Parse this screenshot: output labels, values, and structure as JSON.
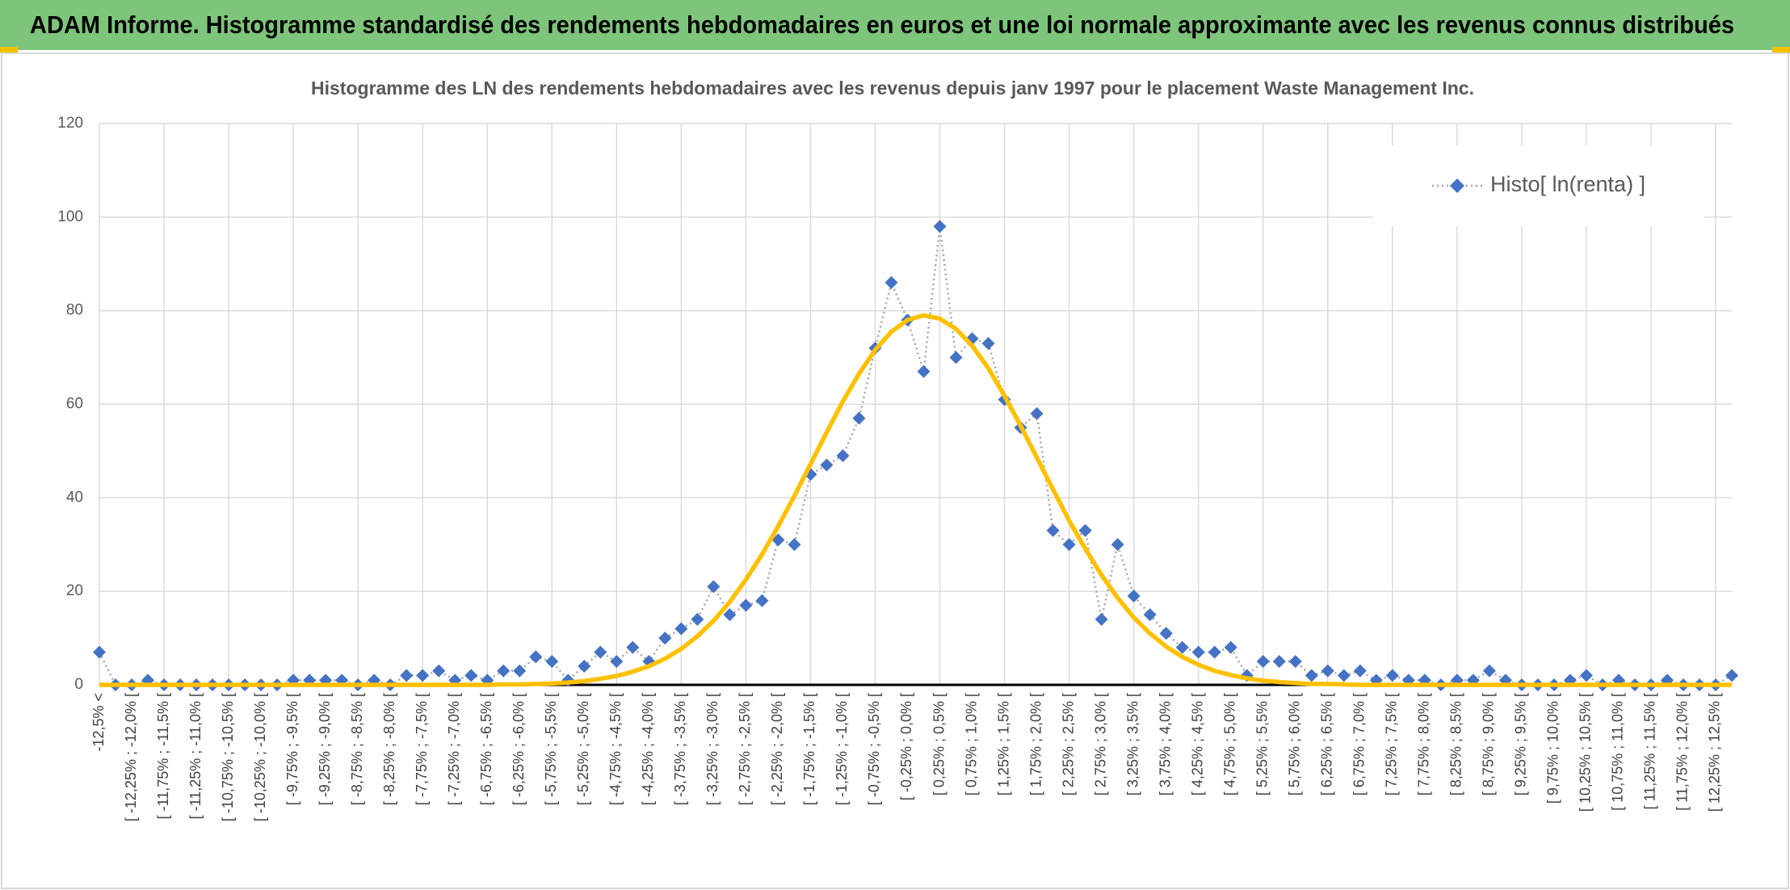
{
  "header": {
    "title": "ADAM Informe. Histogramme standardisé des rendements hebdomadaires en euros et une loi normale approximante avec les revenus connus distribués"
  },
  "chart_data": {
    "type": "line",
    "title": "Histogramme des LN des rendements hebdomadaires avec les revenus depuis janv 1997 pour le placement Waste Management Inc.",
    "categories": [
      "-12,5% <",
      null,
      "[ -12,25% ; -12,0% [",
      null,
      "[ -11,75% ; -11,5% [",
      null,
      "[ -11,25% ; -11,0% [",
      null,
      "[ -10,75% ; -10,5% [",
      null,
      "[ -10,25% ; -10,0% [",
      null,
      "[ -9,75% ; -9,5% [",
      null,
      "[ -9,25% ; -9,0% [",
      null,
      "[ -8,75% ; -8,5% [",
      null,
      "[ -8,25% ; -8,0% [",
      null,
      "[ -7,75% ; -7,5% [",
      null,
      "[ -7,25% ; -7,0% [",
      null,
      "[ -6,75% ; -6,5% [",
      null,
      "[ -6,25% ; -6,0% [",
      null,
      "[ -5,75% ; -5,5% [",
      null,
      "[ -5,25% ; -5,0% [",
      null,
      "[ -4,75% ; -4,5% [",
      null,
      "[ -4,25% ; -4,0% [",
      null,
      "[ -3,75% ; -3,5% [",
      null,
      "[ -3,25% ; -3,0% [",
      null,
      "[ -2,75% ; -2,5% [",
      null,
      "[ -2,25% ; -2,0% [",
      null,
      "[ -1,75% ; -1,5% [",
      null,
      "[ -1,25% ; -1,0% [",
      null,
      "[ -0,75% ; -0,5% [",
      null,
      "[ -0,25% ; 0,0% [",
      null,
      "[ 0,25% ; 0,5% [",
      null,
      "[ 0,75% ; 1,0% [",
      null,
      "[ 1,25% ; 1,5% [",
      null,
      "[ 1,75% ; 2,0% [",
      null,
      "[ 2,25% ; 2,5% [",
      null,
      "[ 2,75% ; 3,0% [",
      null,
      "[ 3,25% ; 3,5% [",
      null,
      "[ 3,75% ; 4,0% [",
      null,
      "[ 4,25% ; 4,5% [",
      null,
      "[ 4,75% ; 5,0% [",
      null,
      "[ 5,25% ; 5,5% [",
      null,
      "[ 5,75% ; 6,0% [",
      null,
      "[ 6,25% ; 6,5% [",
      null,
      "[ 6,75% ; 7,0% [",
      null,
      "[ 7,25% ; 7,5% [",
      null,
      "[ 7,75% ; 8,0% [",
      null,
      "[ 8,25% ; 8,5% [",
      null,
      "[ 8,75% ; 9,0% [",
      null,
      "[ 9,25% ; 9,5% [",
      null,
      "[ 9,75% ; 10,0% [",
      null,
      "[ 10,25% ; 10,5% [",
      null,
      "[ 10,75% ; 11,0% [",
      null,
      "[ 11,25% ; 11,5% [",
      null,
      "[ 11,75% ; 12,0% [",
      null,
      "[ 12,25% ; 12,5% [",
      null
    ],
    "series": [
      {
        "name": "Histo[ ln(renta) ]",
        "color": "#4472c4",
        "line_color": "#a5a5a5",
        "values": [
          7,
          0,
          0,
          1,
          0,
          0,
          0,
          0,
          0,
          0,
          0,
          0,
          1,
          1,
          1,
          1,
          0,
          1,
          0,
          2,
          2,
          3,
          1,
          2,
          1,
          3,
          3,
          6,
          5,
          1,
          4,
          7,
          5,
          8,
          5,
          10,
          12,
          14,
          21,
          15,
          17,
          18,
          31,
          30,
          45,
          47,
          49,
          57,
          72,
          86,
          78,
          67,
          98,
          70,
          74,
          73,
          61,
          55,
          58,
          33,
          30,
          33,
          14,
          30,
          19,
          15,
          11,
          8,
          7,
          7,
          8,
          2,
          5,
          5,
          5,
          2,
          3,
          2,
          3,
          1,
          2,
          1,
          1,
          0,
          1,
          1,
          3,
          1,
          0,
          0,
          0,
          1,
          2,
          0,
          1,
          0,
          0,
          1,
          0,
          0,
          0,
          2
        ]
      },
      {
        "color": "#ffc000",
        "values": [
          0,
          0,
          0,
          0,
          0,
          0,
          0,
          0,
          0,
          0,
          0,
          0,
          0,
          0,
          0,
          0,
          0,
          0,
          0,
          0,
          0,
          0,
          0,
          0,
          0,
          0.1,
          0.1,
          0.2,
          0.3,
          0.5,
          0.8,
          1.3,
          1.9,
          2.8,
          4.0,
          5.6,
          7.7,
          10.4,
          13.7,
          17.7,
          22.5,
          27.9,
          33.9,
          40.4,
          47.2,
          54.0,
          60.6,
          66.5,
          71.6,
          75.5,
          78.0,
          79.0,
          78.3,
          76.1,
          72.5,
          67.7,
          61.8,
          55.4,
          48.6,
          41.8,
          35.1,
          29.1,
          23.5,
          18.6,
          14.4,
          11.0,
          8.2,
          6.0,
          4.3,
          3.0,
          2.1,
          1.4,
          0.9,
          0.6,
          0.4,
          0.2,
          0.2,
          0.1,
          0,
          0,
          0,
          0,
          0,
          0,
          0,
          0,
          0,
          0,
          0,
          0,
          0,
          0,
          0,
          0,
          0,
          0,
          0,
          0,
          0,
          0,
          0,
          0
        ]
      }
    ],
    "ylim": [
      0,
      120
    ],
    "yticks": [
      0,
      20,
      40,
      60,
      80,
      100,
      120
    ],
    "grid": true,
    "legend": "top-right"
  }
}
